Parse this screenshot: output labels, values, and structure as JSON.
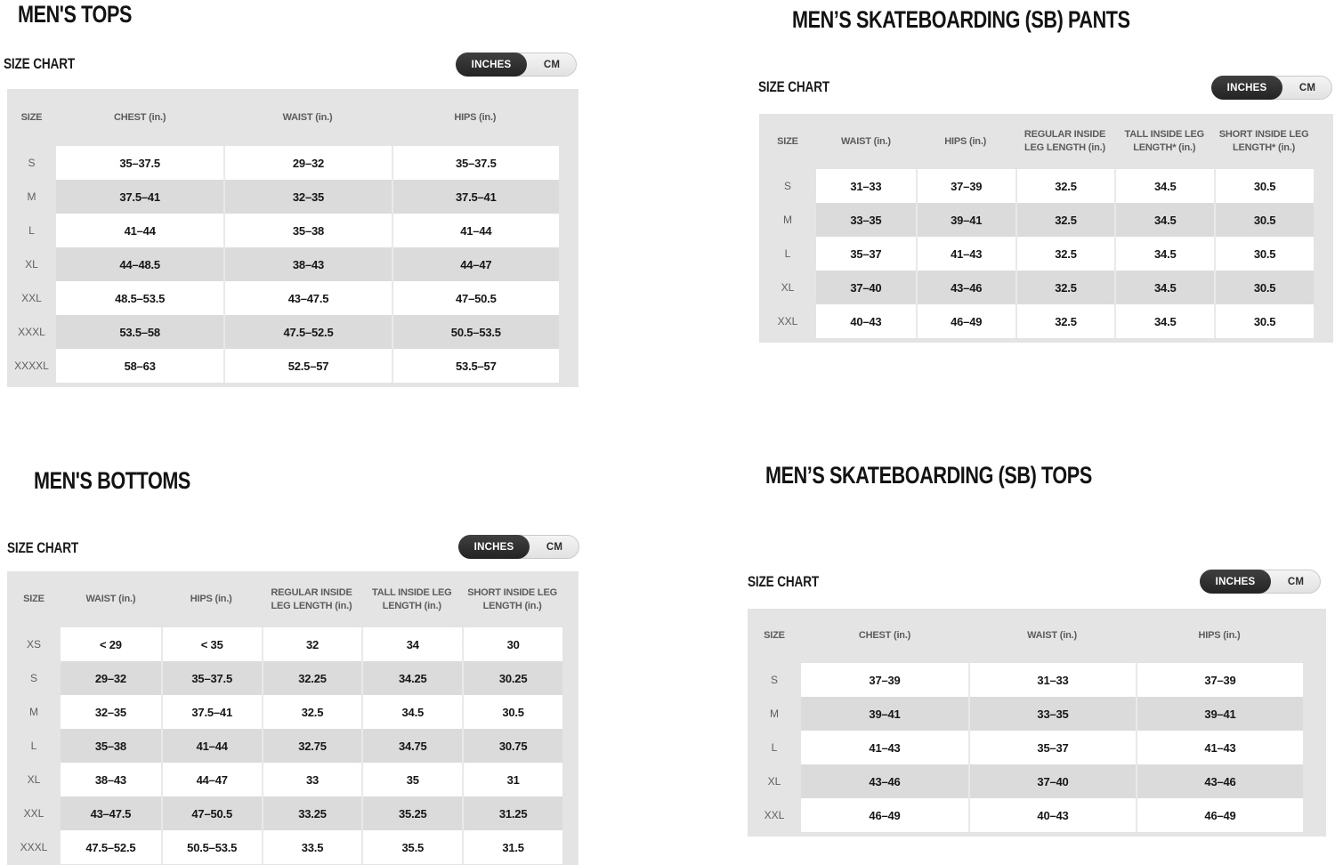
{
  "colors": {
    "title_text": "#131313",
    "table_background": "#e4e4e4",
    "row_white": "#ffffff",
    "row_alt_gray": "#dbdbdb",
    "muted_label_text": "#5c5c5c",
    "data_text": "#161616",
    "toggle_selected_bg": "#2d2d2d",
    "toggle_unselected_bg": "#e9e9e9"
  },
  "charts": [
    {
      "title": "MEN'S TOPS",
      "size_chart_label": "SIZE CHART",
      "unit_toggle": {
        "options": [
          "INCHES",
          "CM"
        ],
        "selected": "INCHES"
      },
      "columns": [
        "SIZE",
        "CHEST (in.)",
        "WAIST (in.)",
        "HIPS (in.)"
      ],
      "rows": [
        {
          "size": "S",
          "values": [
            "35–37.5",
            "29–32",
            "35–37.5"
          ]
        },
        {
          "size": "M",
          "values": [
            "37.5–41",
            "32–35",
            "37.5–41"
          ]
        },
        {
          "size": "L",
          "values": [
            "41–44",
            "35–38",
            "41–44"
          ]
        },
        {
          "size": "XL",
          "values": [
            "44–48.5",
            "38–43",
            "44–47"
          ]
        },
        {
          "size": "XXL",
          "values": [
            "48.5–53.5",
            "43–47.5",
            "47–50.5"
          ]
        },
        {
          "size": "XXXL",
          "values": [
            "53.5–58",
            "47.5–52.5",
            "50.5–53.5"
          ]
        },
        {
          "size": "XXXXL",
          "values": [
            "58–63",
            "52.5–57",
            "53.5–57"
          ]
        }
      ]
    },
    {
      "title": "MEN’S SKATEBOARDING (SB) PANTS",
      "size_chart_label": "SIZE CHART",
      "unit_toggle": {
        "options": [
          "INCHES",
          "CM"
        ],
        "selected": "INCHES"
      },
      "columns": [
        "SIZE",
        "WAIST (in.)",
        "HIPS (in.)",
        "REGULAR INSIDE LEG LENGTH (in.)",
        "TALL INSIDE LEG LENGTH* (in.)",
        "SHORT INSIDE LEG LENGTH* (in.)"
      ],
      "rows": [
        {
          "size": "S",
          "values": [
            "31–33",
            "37–39",
            "32.5",
            "34.5",
            "30.5"
          ]
        },
        {
          "size": "M",
          "values": [
            "33–35",
            "39–41",
            "32.5",
            "34.5",
            "30.5"
          ]
        },
        {
          "size": "L",
          "values": [
            "35–37",
            "41–43",
            "32.5",
            "34.5",
            "30.5"
          ]
        },
        {
          "size": "XL",
          "values": [
            "37–40",
            "43–46",
            "32.5",
            "34.5",
            "30.5"
          ]
        },
        {
          "size": "XXL",
          "values": [
            "40–43",
            "46–49",
            "32.5",
            "34.5",
            "30.5"
          ]
        }
      ]
    },
    {
      "title": "MEN'S BOTTOMS",
      "size_chart_label": "SIZE CHART",
      "unit_toggle": {
        "options": [
          "INCHES",
          "CM"
        ],
        "selected": "INCHES"
      },
      "columns": [
        "SIZE",
        "WAIST (in.)",
        "HIPS (in.)",
        "REGULAR INSIDE LEG LENGTH (in.)",
        "TALL INSIDE LEG LENGTH (in.)",
        "SHORT INSIDE LEG LENGTH (in.)"
      ],
      "rows": [
        {
          "size": "XS",
          "values": [
            "< 29",
            "< 35",
            "32",
            "34",
            "30"
          ]
        },
        {
          "size": "S",
          "values": [
            "29–32",
            "35–37.5",
            "32.25",
            "34.25",
            "30.25"
          ]
        },
        {
          "size": "M",
          "values": [
            "32–35",
            "37.5–41",
            "32.5",
            "34.5",
            "30.5"
          ]
        },
        {
          "size": "L",
          "values": [
            "35–38",
            "41–44",
            "32.75",
            "34.75",
            "30.75"
          ]
        },
        {
          "size": "XL",
          "values": [
            "38–43",
            "44–47",
            "33",
            "35",
            "31"
          ]
        },
        {
          "size": "XXL",
          "values": [
            "43–47.5",
            "47–50.5",
            "33.25",
            "35.25",
            "31.25"
          ]
        },
        {
          "size": "XXXL",
          "values": [
            "47.5–52.5",
            "50.5–53.5",
            "33.5",
            "35.5",
            "31.5"
          ]
        }
      ]
    },
    {
      "title": "MEN’S SKATEBOARDING (SB) TOPS",
      "size_chart_label": "SIZE CHART",
      "unit_toggle": {
        "options": [
          "INCHES",
          "CM"
        ],
        "selected": "INCHES"
      },
      "columns": [
        "SIZE",
        "CHEST (in.)",
        "WAIST (in.)",
        "HIPS (in.)"
      ],
      "rows": [
        {
          "size": "S",
          "values": [
            "37–39",
            "31–33",
            "37–39"
          ]
        },
        {
          "size": "M",
          "values": [
            "39–41",
            "33–35",
            "39–41"
          ]
        },
        {
          "size": "L",
          "values": [
            "41–43",
            "35–37",
            "41–43"
          ]
        },
        {
          "size": "XL",
          "values": [
            "43–46",
            "37–40",
            "43–46"
          ]
        },
        {
          "size": "XXL",
          "values": [
            "46–49",
            "40–43",
            "46–49"
          ]
        }
      ]
    }
  ]
}
